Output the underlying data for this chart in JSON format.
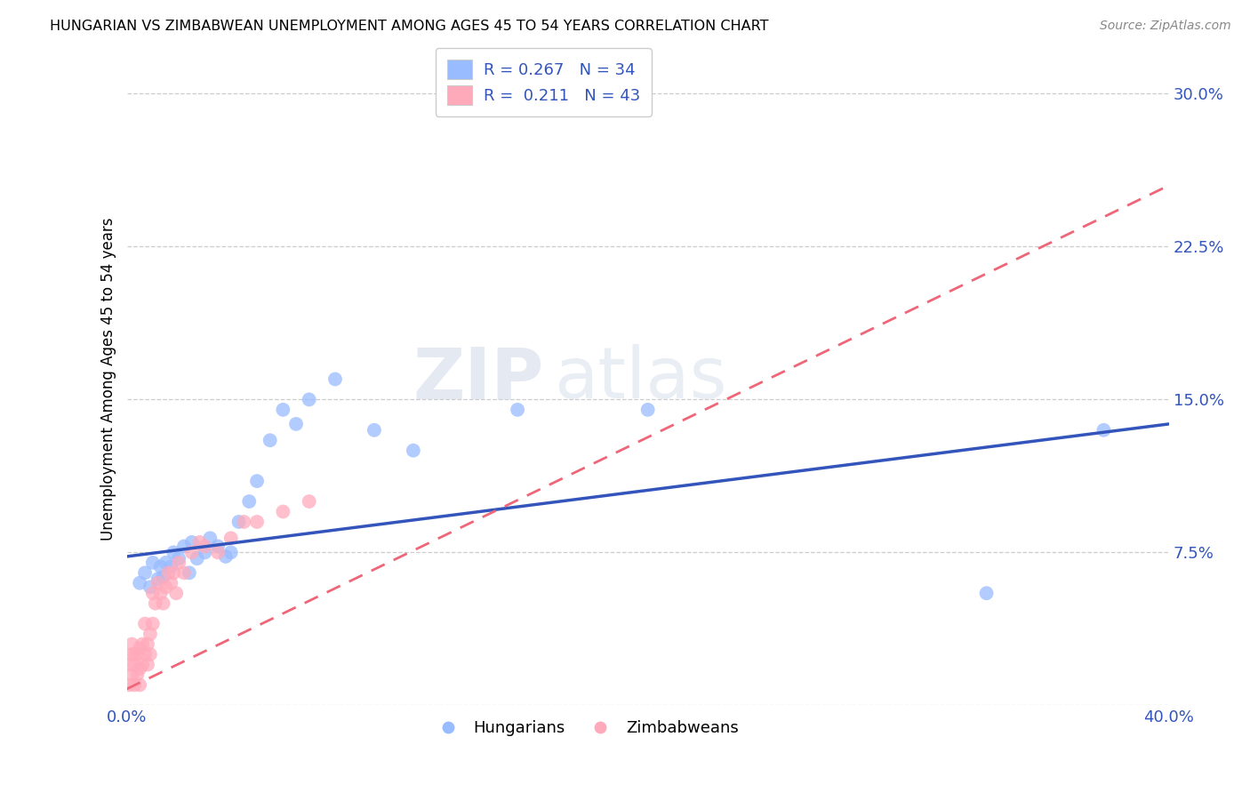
{
  "title": "HUNGARIAN VS ZIMBABWEAN UNEMPLOYMENT AMONG AGES 45 TO 54 YEARS CORRELATION CHART",
  "source": "Source: ZipAtlas.com",
  "ylabel": "Unemployment Among Ages 45 to 54 years",
  "xlim": [
    0.0,
    0.4
  ],
  "ylim": [
    0.0,
    0.32
  ],
  "xticks": [
    0.0,
    0.1,
    0.2,
    0.3,
    0.4
  ],
  "xticklabels": [
    "0.0%",
    "",
    "",
    "",
    "40.0%"
  ],
  "yticks": [
    0.0,
    0.075,
    0.15,
    0.225,
    0.3
  ],
  "yticklabels": [
    "",
    "7.5%",
    "15.0%",
    "22.5%",
    "30.0%"
  ],
  "grid_color": "#c8c8c8",
  "blue_scatter_color": "#99bbff",
  "pink_scatter_color": "#ffaabb",
  "blue_line_color": "#3355bb",
  "pink_line_color": "#ee6677",
  "watermark_zip": "ZIP",
  "watermark_atlas": "atlas",
  "legend_R_blue": "0.267",
  "legend_N_blue": "34",
  "legend_R_pink": "0.211",
  "legend_N_pink": "43",
  "hun_scatter_x": [
    0.005,
    0.007,
    0.009,
    0.01,
    0.012,
    0.013,
    0.014,
    0.015,
    0.017,
    0.018,
    0.02,
    0.022,
    0.024,
    0.025,
    0.027,
    0.03,
    0.032,
    0.035,
    0.038,
    0.04,
    0.043,
    0.047,
    0.05,
    0.055,
    0.06,
    0.065,
    0.07,
    0.08,
    0.095,
    0.11,
    0.15,
    0.2,
    0.33,
    0.375
  ],
  "hun_scatter_y": [
    0.06,
    0.065,
    0.058,
    0.07,
    0.062,
    0.068,
    0.063,
    0.07,
    0.068,
    0.075,
    0.072,
    0.078,
    0.065,
    0.08,
    0.072,
    0.075,
    0.082,
    0.078,
    0.073,
    0.075,
    0.09,
    0.1,
    0.11,
    0.13,
    0.145,
    0.138,
    0.15,
    0.16,
    0.135,
    0.125,
    0.145,
    0.145,
    0.055,
    0.135
  ],
  "zim_scatter_x": [
    0.001,
    0.001,
    0.002,
    0.002,
    0.002,
    0.003,
    0.003,
    0.003,
    0.004,
    0.004,
    0.005,
    0.005,
    0.005,
    0.006,
    0.006,
    0.007,
    0.007,
    0.008,
    0.008,
    0.009,
    0.009,
    0.01,
    0.01,
    0.011,
    0.012,
    0.013,
    0.014,
    0.015,
    0.016,
    0.017,
    0.018,
    0.019,
    0.02,
    0.022,
    0.025,
    0.028,
    0.03,
    0.035,
    0.04,
    0.045,
    0.05,
    0.06,
    0.07
  ],
  "zim_scatter_y": [
    0.02,
    0.01,
    0.025,
    0.015,
    0.03,
    0.02,
    0.025,
    0.01,
    0.015,
    0.025,
    0.018,
    0.028,
    0.01,
    0.02,
    0.03,
    0.025,
    0.04,
    0.02,
    0.03,
    0.025,
    0.035,
    0.04,
    0.055,
    0.05,
    0.06,
    0.055,
    0.05,
    0.058,
    0.065,
    0.06,
    0.065,
    0.055,
    0.07,
    0.065,
    0.075,
    0.08,
    0.078,
    0.075,
    0.082,
    0.09,
    0.09,
    0.095,
    0.1
  ],
  "hun_line_x0": 0.0,
  "hun_line_y0": 0.073,
  "hun_line_x1": 0.4,
  "hun_line_y1": 0.138,
  "zim_line_x0": 0.0,
  "zim_line_y0": 0.008,
  "zim_line_x1": 0.4,
  "zim_line_y1": 0.255
}
